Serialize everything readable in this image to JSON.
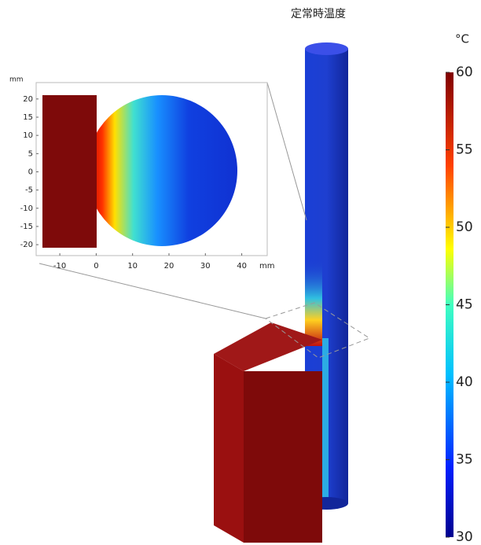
{
  "title": "定常時温度",
  "colorbar": {
    "unit": "°C",
    "lim": [
      30,
      60
    ],
    "ticks": [
      30,
      35,
      40,
      45,
      50,
      55,
      60
    ]
  },
  "inset": {
    "x_unit": "mm",
    "y_unit": "mm",
    "xlim": [
      -16.5,
      47
    ],
    "ylim": [
      -23,
      24.5
    ],
    "xticks": [
      -10,
      0,
      10,
      20,
      30,
      40
    ],
    "yticks": [
      -20,
      -15,
      -10,
      -5,
      0,
      5,
      10,
      15,
      20
    ]
  }
}
